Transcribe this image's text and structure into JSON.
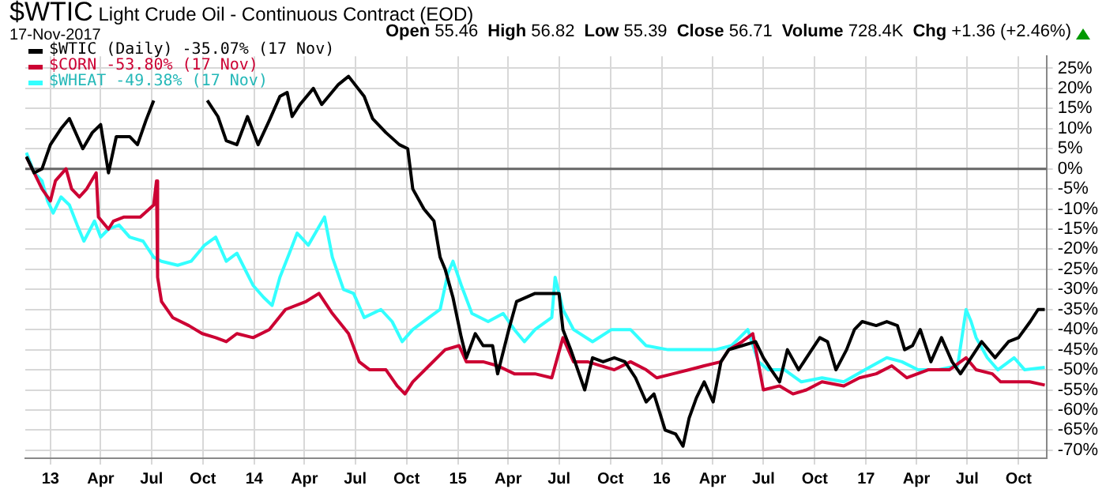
{
  "chart_data": {
    "type": "line",
    "title": "$WTIC Light Crude Oil - Continuous Contract (EOD)",
    "subtitle": "17-Nov-2017",
    "annotations": [
      "Open 55.46",
      "High 56.82",
      "Low 55.39",
      "Close 56.71",
      "Volume 728.4K",
      "Chg +1.36 (+2.46%)"
    ],
    "xlim": [
      "2012-11-17",
      "2017-11-20"
    ],
    "xticks": [
      {
        "value": "2013-01-01",
        "label": "13"
      },
      {
        "value": "2013-04-01",
        "label": "Apr"
      },
      {
        "value": "2013-07-01",
        "label": "Jul"
      },
      {
        "value": "2013-10-01",
        "label": "Oct"
      },
      {
        "value": "2014-01-01",
        "label": "14"
      },
      {
        "value": "2014-04-01",
        "label": "Apr"
      },
      {
        "value": "2014-07-01",
        "label": "Jul"
      },
      {
        "value": "2014-10-01",
        "label": "Oct"
      },
      {
        "value": "2015-01-01",
        "label": "15"
      },
      {
        "value": "2015-04-01",
        "label": "Apr"
      },
      {
        "value": "2015-07-01",
        "label": "Jul"
      },
      {
        "value": "2015-10-01",
        "label": "Oct"
      },
      {
        "value": "2016-01-01",
        "label": "16"
      },
      {
        "value": "2016-04-01",
        "label": "Apr"
      },
      {
        "value": "2016-07-01",
        "label": "Jul"
      },
      {
        "value": "2016-10-01",
        "label": "Oct"
      },
      {
        "value": "2017-01-01",
        "label": "17"
      },
      {
        "value": "2017-04-01",
        "label": "Apr"
      },
      {
        "value": "2017-07-01",
        "label": "Jul"
      },
      {
        "value": "2017-10-01",
        "label": "Oct"
      }
    ],
    "ylim": [
      -72,
      28
    ],
    "yticks": [
      {
        "value": 25,
        "label": "25%"
      },
      {
        "value": 20,
        "label": "20%"
      },
      {
        "value": 15,
        "label": "15%"
      },
      {
        "value": 10,
        "label": "10%"
      },
      {
        "value": 5,
        "label": "5%"
      },
      {
        "value": 0,
        "label": "0%"
      },
      {
        "value": -5,
        "label": "-5%"
      },
      {
        "value": -10,
        "label": "-10%"
      },
      {
        "value": -15,
        "label": "-15%"
      },
      {
        "value": -20,
        "label": "-20%"
      },
      {
        "value": -25,
        "label": "-25%"
      },
      {
        "value": -30,
        "label": "-30%"
      },
      {
        "value": -35,
        "label": "-35%"
      },
      {
        "value": -40,
        "label": "-40%"
      },
      {
        "value": -45,
        "label": "-45%"
      },
      {
        "value": -50,
        "label": "-50%"
      },
      {
        "value": -55,
        "label": "-55%"
      },
      {
        "value": -60,
        "label": "-60%"
      },
      {
        "value": -65,
        "label": "-65%"
      },
      {
        "value": -70,
        "label": "-70%"
      }
    ],
    "grid": true,
    "legend": "top left",
    "ref_lines": [
      {
        "axis": "y",
        "value": 0,
        "color": "#666666"
      }
    ],
    "series": [
      {
        "name": "$WTIC (Daily) -35.07% (17 Nov)",
        "color": "#000000",
        "x": [
          "2012-11-19",
          "2012-12-03",
          "2012-12-17",
          "2013-01-01",
          "2013-01-20",
          "2013-02-04",
          "2013-02-28",
          "2013-03-17",
          "2013-04-01",
          "2013-04-15",
          "2013-04-29",
          "2013-05-23",
          "2013-06-06",
          "2013-06-21",
          "2013-07-05",
          "2013-08-15",
          "2013-10-09",
          "2013-10-28",
          "2013-11-12",
          "2013-12-01",
          "2013-12-20",
          "2014-01-08",
          "2014-01-28",
          "2014-02-16",
          "2014-03-01",
          "2014-03-10",
          "2014-03-24",
          "2014-04-17",
          "2014-05-02",
          "2014-06-01",
          "2014-06-19",
          "2014-07-17",
          "2014-08-01",
          "2014-08-25",
          "2014-09-18",
          "2014-10-03",
          "2014-10-12",
          "2014-11-01",
          "2014-11-19",
          "2014-11-30",
          "2014-12-09",
          "2014-12-23",
          "2015-01-07",
          "2015-01-16",
          "2015-02-01",
          "2015-02-15",
          "2015-03-04",
          "2015-03-13",
          "2015-04-02",
          "2015-04-16",
          "2015-05-19",
          "2015-06-18",
          "2015-07-01",
          "2015-07-08",
          "2015-07-22",
          "2015-08-16",
          "2015-08-30",
          "2015-09-18",
          "2015-10-08",
          "2015-10-27",
          "2015-11-15",
          "2015-12-04",
          "2015-12-18",
          "2016-01-07",
          "2016-01-26",
          "2016-02-08",
          "2016-02-19",
          "2016-03-03",
          "2016-03-17",
          "2016-04-02",
          "2016-04-16",
          "2016-04-30",
          "2016-05-24",
          "2016-06-17",
          "2016-07-01",
          "2016-07-15",
          "2016-07-30",
          "2016-08-13",
          "2016-09-02",
          "2016-09-21",
          "2016-10-10",
          "2016-10-24",
          "2016-11-08",
          "2016-11-27",
          "2016-12-11",
          "2016-12-25",
          "2017-01-19",
          "2017-02-07",
          "2017-02-26",
          "2017-03-11",
          "2017-03-25",
          "2017-04-08",
          "2017-04-27",
          "2017-05-16",
          "2017-06-04",
          "2017-06-19",
          "2017-07-08",
          "2017-07-27",
          "2017-08-20",
          "2017-09-13",
          "2017-10-01",
          "2017-10-22",
          "2017-11-05",
          "2017-11-17"
        ],
        "values": [
          3,
          -1,
          0,
          6,
          10,
          12.5,
          5,
          9,
          11,
          -1,
          8,
          8,
          6,
          12,
          17,
          null,
          17,
          13,
          7,
          6,
          13,
          6,
          12,
          18,
          19,
          13,
          16,
          20,
          16,
          21,
          23,
          18,
          12.5,
          9,
          6,
          5,
          -5,
          -10,
          -13,
          -22,
          -25,
          -32,
          -42,
          -47,
          -41,
          -44,
          -44,
          -51,
          -40,
          -33,
          -31,
          -31,
          -31,
          -40,
          -45,
          -55,
          -47,
          -48,
          -47,
          -48,
          -52,
          -58,
          -56,
          -65,
          -66,
          -69,
          -62,
          -57,
          -53,
          -58,
          -48,
          -45,
          -44,
          -43,
          -47,
          -50,
          -53,
          -45,
          -50,
          -46,
          -42,
          -43,
          -50,
          -45,
          -40,
          -38,
          -39,
          -38,
          -39,
          -45,
          -44,
          -40,
          -48,
          -42,
          -48,
          -51,
          -47,
          -43,
          -47,
          -43,
          -42,
          -38,
          -35,
          -35
        ]
      },
      {
        "name": "$CORN -53.80% (17 Nov)",
        "color": "#cc0033",
        "x": [
          "2012-11-19",
          "2012-12-03",
          "2012-12-17",
          "2013-01-01",
          "2013-01-10",
          "2013-01-29",
          "2013-02-08",
          "2013-02-22",
          "2013-03-07",
          "2013-03-24",
          "2013-03-28",
          "2013-04-15",
          "2013-04-24",
          "2013-05-13",
          "2013-06-11",
          "2013-07-05",
          "2013-07-10",
          "2013-07-12",
          "2013-07-19",
          "2013-08-08",
          "2013-09-06",
          "2013-09-30",
          "2013-10-24",
          "2013-11-12",
          "2013-12-01",
          "2013-12-30",
          "2014-01-28",
          "2014-02-26",
          "2014-04-04",
          "2014-04-27",
          "2014-05-21",
          "2014-06-19",
          "2014-07-08",
          "2014-07-27",
          "2014-08-25",
          "2014-09-14",
          "2014-09-28",
          "2014-10-12",
          "2014-11-10",
          "2014-12-09",
          "2015-01-03",
          "2015-01-16",
          "2015-02-15",
          "2015-03-13",
          "2015-04-12",
          "2015-05-19",
          "2015-06-18",
          "2015-07-08",
          "2015-07-27",
          "2015-08-21",
          "2015-10-08",
          "2015-11-06",
          "2015-12-04",
          "2015-12-23",
          "2016-01-21",
          "2016-02-19",
          "2016-03-17",
          "2016-04-16",
          "2016-04-30",
          "2016-05-24",
          "2016-06-12",
          "2016-07-01",
          "2016-07-30",
          "2016-08-23",
          "2016-09-16",
          "2016-10-14",
          "2016-11-22",
          "2016-12-20",
          "2017-01-19",
          "2017-02-16",
          "2017-03-15",
          "2017-04-22",
          "2017-05-30",
          "2017-06-29",
          "2017-07-17",
          "2017-08-15",
          "2017-08-30",
          "2017-09-23",
          "2017-10-21",
          "2017-11-17"
        ],
        "values": [
          3,
          -1,
          -5,
          -8,
          -3,
          0,
          -5,
          -7,
          -5,
          -1,
          -12,
          -15,
          -13,
          -12,
          -12,
          -9,
          -3,
          -27,
          -33,
          -37,
          -39,
          -41,
          -42,
          -43,
          -41,
          -42,
          -40,
          -35,
          -33,
          -31,
          -36,
          -41,
          -48,
          -50,
          -50,
          -54,
          -56,
          -53,
          -49,
          -45,
          -44,
          -48,
          -48,
          -49,
          -51,
          -51,
          -52,
          -42,
          -48,
          -48,
          -50,
          -48,
          -50,
          -52,
          -51,
          -50,
          -49,
          -48,
          -45,
          -43,
          -41,
          -55,
          -54,
          -56,
          -55,
          -53,
          -54,
          -52,
          -51,
          -49,
          -52,
          -50,
          -50,
          -47,
          -50,
          -51,
          -53,
          -53,
          -53,
          -53.8
        ]
      },
      {
        "name": "$WHEAT -49.38% (17 Nov)",
        "color": "#33ffff",
        "x": [
          "2012-11-19",
          "2012-12-03",
          "2012-12-17",
          "2012-12-27",
          "2013-01-06",
          "2013-01-20",
          "2013-02-04",
          "2013-02-18",
          "2013-03-02",
          "2013-03-21",
          "2013-04-01",
          "2013-04-15",
          "2013-05-04",
          "2013-05-23",
          "2013-06-16",
          "2013-07-05",
          "2013-07-19",
          "2013-08-17",
          "2013-09-10",
          "2013-10-04",
          "2013-10-24",
          "2013-11-12",
          "2013-12-01",
          "2013-12-30",
          "2014-01-18",
          "2014-02-02",
          "2014-02-16",
          "2014-03-05",
          "2014-03-19",
          "2014-04-08",
          "2014-05-07",
          "2014-05-21",
          "2014-06-10",
          "2014-06-28",
          "2014-07-17",
          "2014-08-16",
          "2014-09-05",
          "2014-09-23",
          "2014-10-12",
          "2014-11-10",
          "2014-11-30",
          "2014-12-14",
          "2014-12-23",
          "2015-01-07",
          "2015-01-26",
          "2015-02-24",
          "2015-03-23",
          "2015-04-12",
          "2015-04-30",
          "2015-05-19",
          "2015-06-18",
          "2015-06-24",
          "2015-07-08",
          "2015-07-27",
          "2015-08-30",
          "2015-10-03",
          "2015-11-06",
          "2015-12-04",
          "2016-01-12",
          "2016-02-28",
          "2016-04-06",
          "2016-05-05",
          "2016-06-03",
          "2016-06-22",
          "2016-07-10",
          "2016-08-08",
          "2016-09-07",
          "2016-10-14",
          "2016-11-22",
          "2016-12-30",
          "2017-02-07",
          "2017-03-06",
          "2017-04-04",
          "2017-05-11",
          "2017-06-14",
          "2017-06-29",
          "2017-07-08",
          "2017-07-17",
          "2017-08-06",
          "2017-08-25",
          "2017-09-23",
          "2017-10-12",
          "2017-11-17"
        ],
        "values": [
          4,
          -1,
          -3,
          -8,
          -11,
          -7,
          -9,
          -14,
          -18,
          -13,
          -17,
          -15,
          -14,
          -17,
          -18,
          -22,
          -23,
          -24,
          -23,
          -19,
          -17,
          -23,
          -21,
          -29,
          -32,
          -34,
          -27,
          -21,
          -16,
          -19,
          -12,
          -22,
          -30,
          -31,
          -37,
          -35,
          -38,
          -43,
          -40,
          -37,
          -35,
          -26,
          -23,
          -29,
          -36,
          -38,
          -36,
          -40,
          -43,
          -40,
          -37,
          -27,
          -35,
          -40,
          -43,
          -40,
          -40,
          -44,
          -45,
          -45,
          -45,
          -44,
          -40,
          -48,
          -50,
          -50,
          -53,
          -52,
          -53,
          -50,
          -47,
          -48,
          -50,
          -50,
          -49,
          -35,
          -38,
          -42,
          -47,
          -50,
          -47,
          -50,
          -49.4
        ]
      }
    ]
  }
}
